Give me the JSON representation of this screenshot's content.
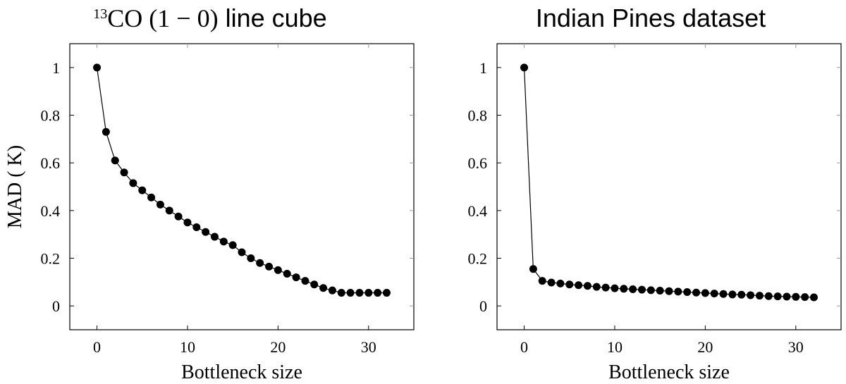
{
  "chart_data": [
    {
      "type": "line",
      "title_sup": "13",
      "title_main": "CO (1 − 0)",
      "title_rest": " line cube",
      "xlabel": "Bottleneck size",
      "ylabel": "MAD ( K)",
      "xlim": [
        -3,
        35
      ],
      "ylim": [
        -0.1,
        1.1
      ],
      "xticks": [
        0,
        10,
        20,
        30
      ],
      "yticks": [
        0,
        0.2,
        0.4,
        0.6,
        0.8,
        1
      ],
      "xtick_labels": [
        "0",
        "10",
        "20",
        "30"
      ],
      "ytick_labels": [
        "0",
        "0.2",
        "0.4",
        "0.6",
        "0.8",
        "1"
      ],
      "series": [
        {
          "x": [
            0,
            1,
            2,
            3,
            4,
            5,
            6,
            7,
            8,
            9,
            10,
            11,
            12,
            13,
            14,
            15,
            16,
            17,
            18,
            19,
            20,
            21,
            22,
            23,
            24,
            25,
            26,
            27,
            28,
            29,
            30,
            31,
            32
          ],
          "y": [
            1.0,
            0.73,
            0.61,
            0.56,
            0.515,
            0.485,
            0.455,
            0.425,
            0.4,
            0.375,
            0.35,
            0.33,
            0.31,
            0.29,
            0.27,
            0.255,
            0.225,
            0.2,
            0.18,
            0.165,
            0.15,
            0.135,
            0.12,
            0.105,
            0.09,
            0.075,
            0.065,
            0.055,
            0.055,
            0.055,
            0.055,
            0.055,
            0.055
          ]
        }
      ]
    },
    {
      "type": "line",
      "title": "Indian Pines dataset",
      "xlabel": "Bottleneck size",
      "ylabel": "",
      "xlim": [
        -3,
        35
      ],
      "ylim": [
        -0.1,
        1.1
      ],
      "xticks": [
        0,
        10,
        20,
        30
      ],
      "yticks": [
        0,
        0.2,
        0.4,
        0.6,
        0.8,
        1
      ],
      "xtick_labels": [
        "0",
        "10",
        "20",
        "30"
      ],
      "ytick_labels": [
        "0",
        "0.2",
        "0.4",
        "0.6",
        "0.8",
        "1"
      ],
      "series": [
        {
          "x": [
            0,
            1,
            2,
            3,
            4,
            5,
            6,
            7,
            8,
            9,
            10,
            11,
            12,
            13,
            14,
            15,
            16,
            17,
            18,
            19,
            20,
            21,
            22,
            23,
            24,
            25,
            26,
            27,
            28,
            29,
            30,
            31,
            32
          ],
          "y": [
            1.0,
            0.155,
            0.105,
            0.098,
            0.094,
            0.09,
            0.087,
            0.084,
            0.08,
            0.077,
            0.074,
            0.072,
            0.07,
            0.068,
            0.066,
            0.064,
            0.062,
            0.06,
            0.058,
            0.056,
            0.054,
            0.052,
            0.05,
            0.048,
            0.047,
            0.045,
            0.043,
            0.041,
            0.04,
            0.039,
            0.038,
            0.037,
            0.036
          ]
        }
      ]
    }
  ]
}
